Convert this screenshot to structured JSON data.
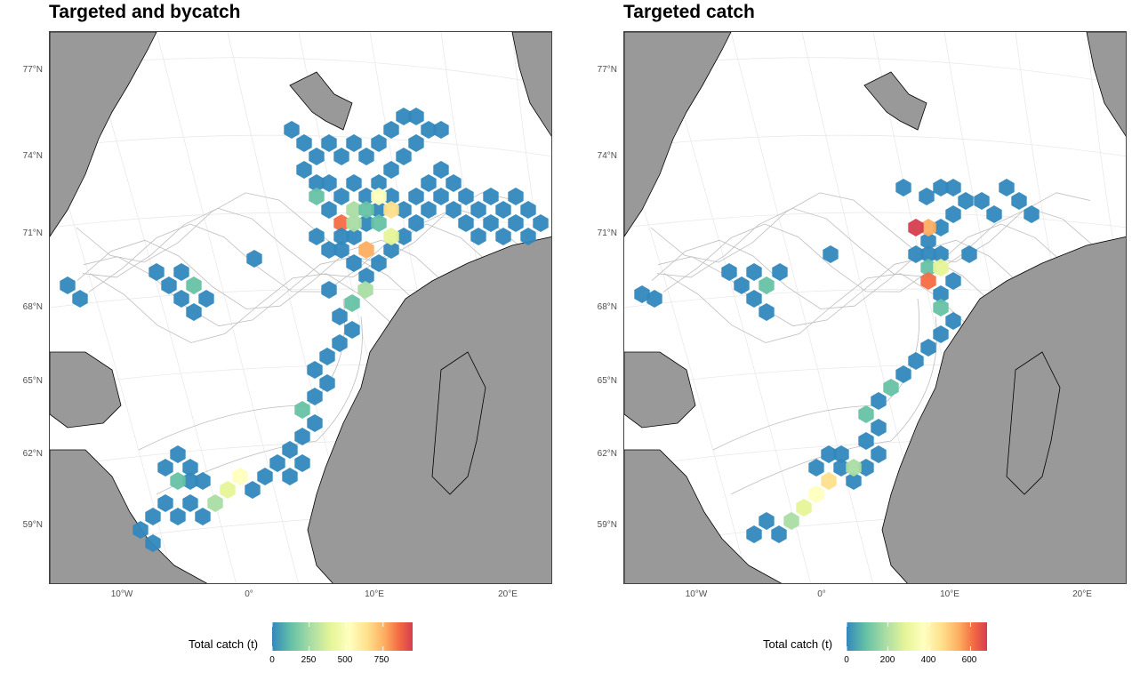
{
  "panels": [
    {
      "title": "Targeted and bycatch",
      "legend": {
        "title": "Total catch (t)",
        "ticks": [
          {
            "value": 0,
            "label": "0"
          },
          {
            "value": 250,
            "label": "250"
          },
          {
            "value": 500,
            "label": "500"
          },
          {
            "value": 750,
            "label": "750"
          }
        ],
        "max": 950
      }
    },
    {
      "title": "Targeted catch",
      "legend": {
        "title": "Total catch (t)",
        "ticks": [
          {
            "value": 0,
            "label": "0"
          },
          {
            "value": 200,
            "label": "200"
          },
          {
            "value": 400,
            "label": "400"
          },
          {
            "value": 600,
            "label": "600"
          }
        ],
        "max": 680
      }
    }
  ],
  "axes": {
    "y_labels": [
      "77°N",
      "74°N",
      "71°N",
      "68°N",
      "65°N",
      "62°N",
      "59°N"
    ],
    "x_labels": [
      "10°W",
      "0°",
      "10°E",
      "20°E"
    ]
  },
  "colors": {
    "land": "#999999",
    "ocean": "#ffffff",
    "contour": "#bdbdbd",
    "frame": "#444444"
  },
  "colorscale": [
    "#3288bd",
    "#66c2a5",
    "#abdda4",
    "#e6f598",
    "#ffffbf",
    "#fee08b",
    "#fdae61",
    "#f46d43",
    "#d53e4f"
  ]
}
